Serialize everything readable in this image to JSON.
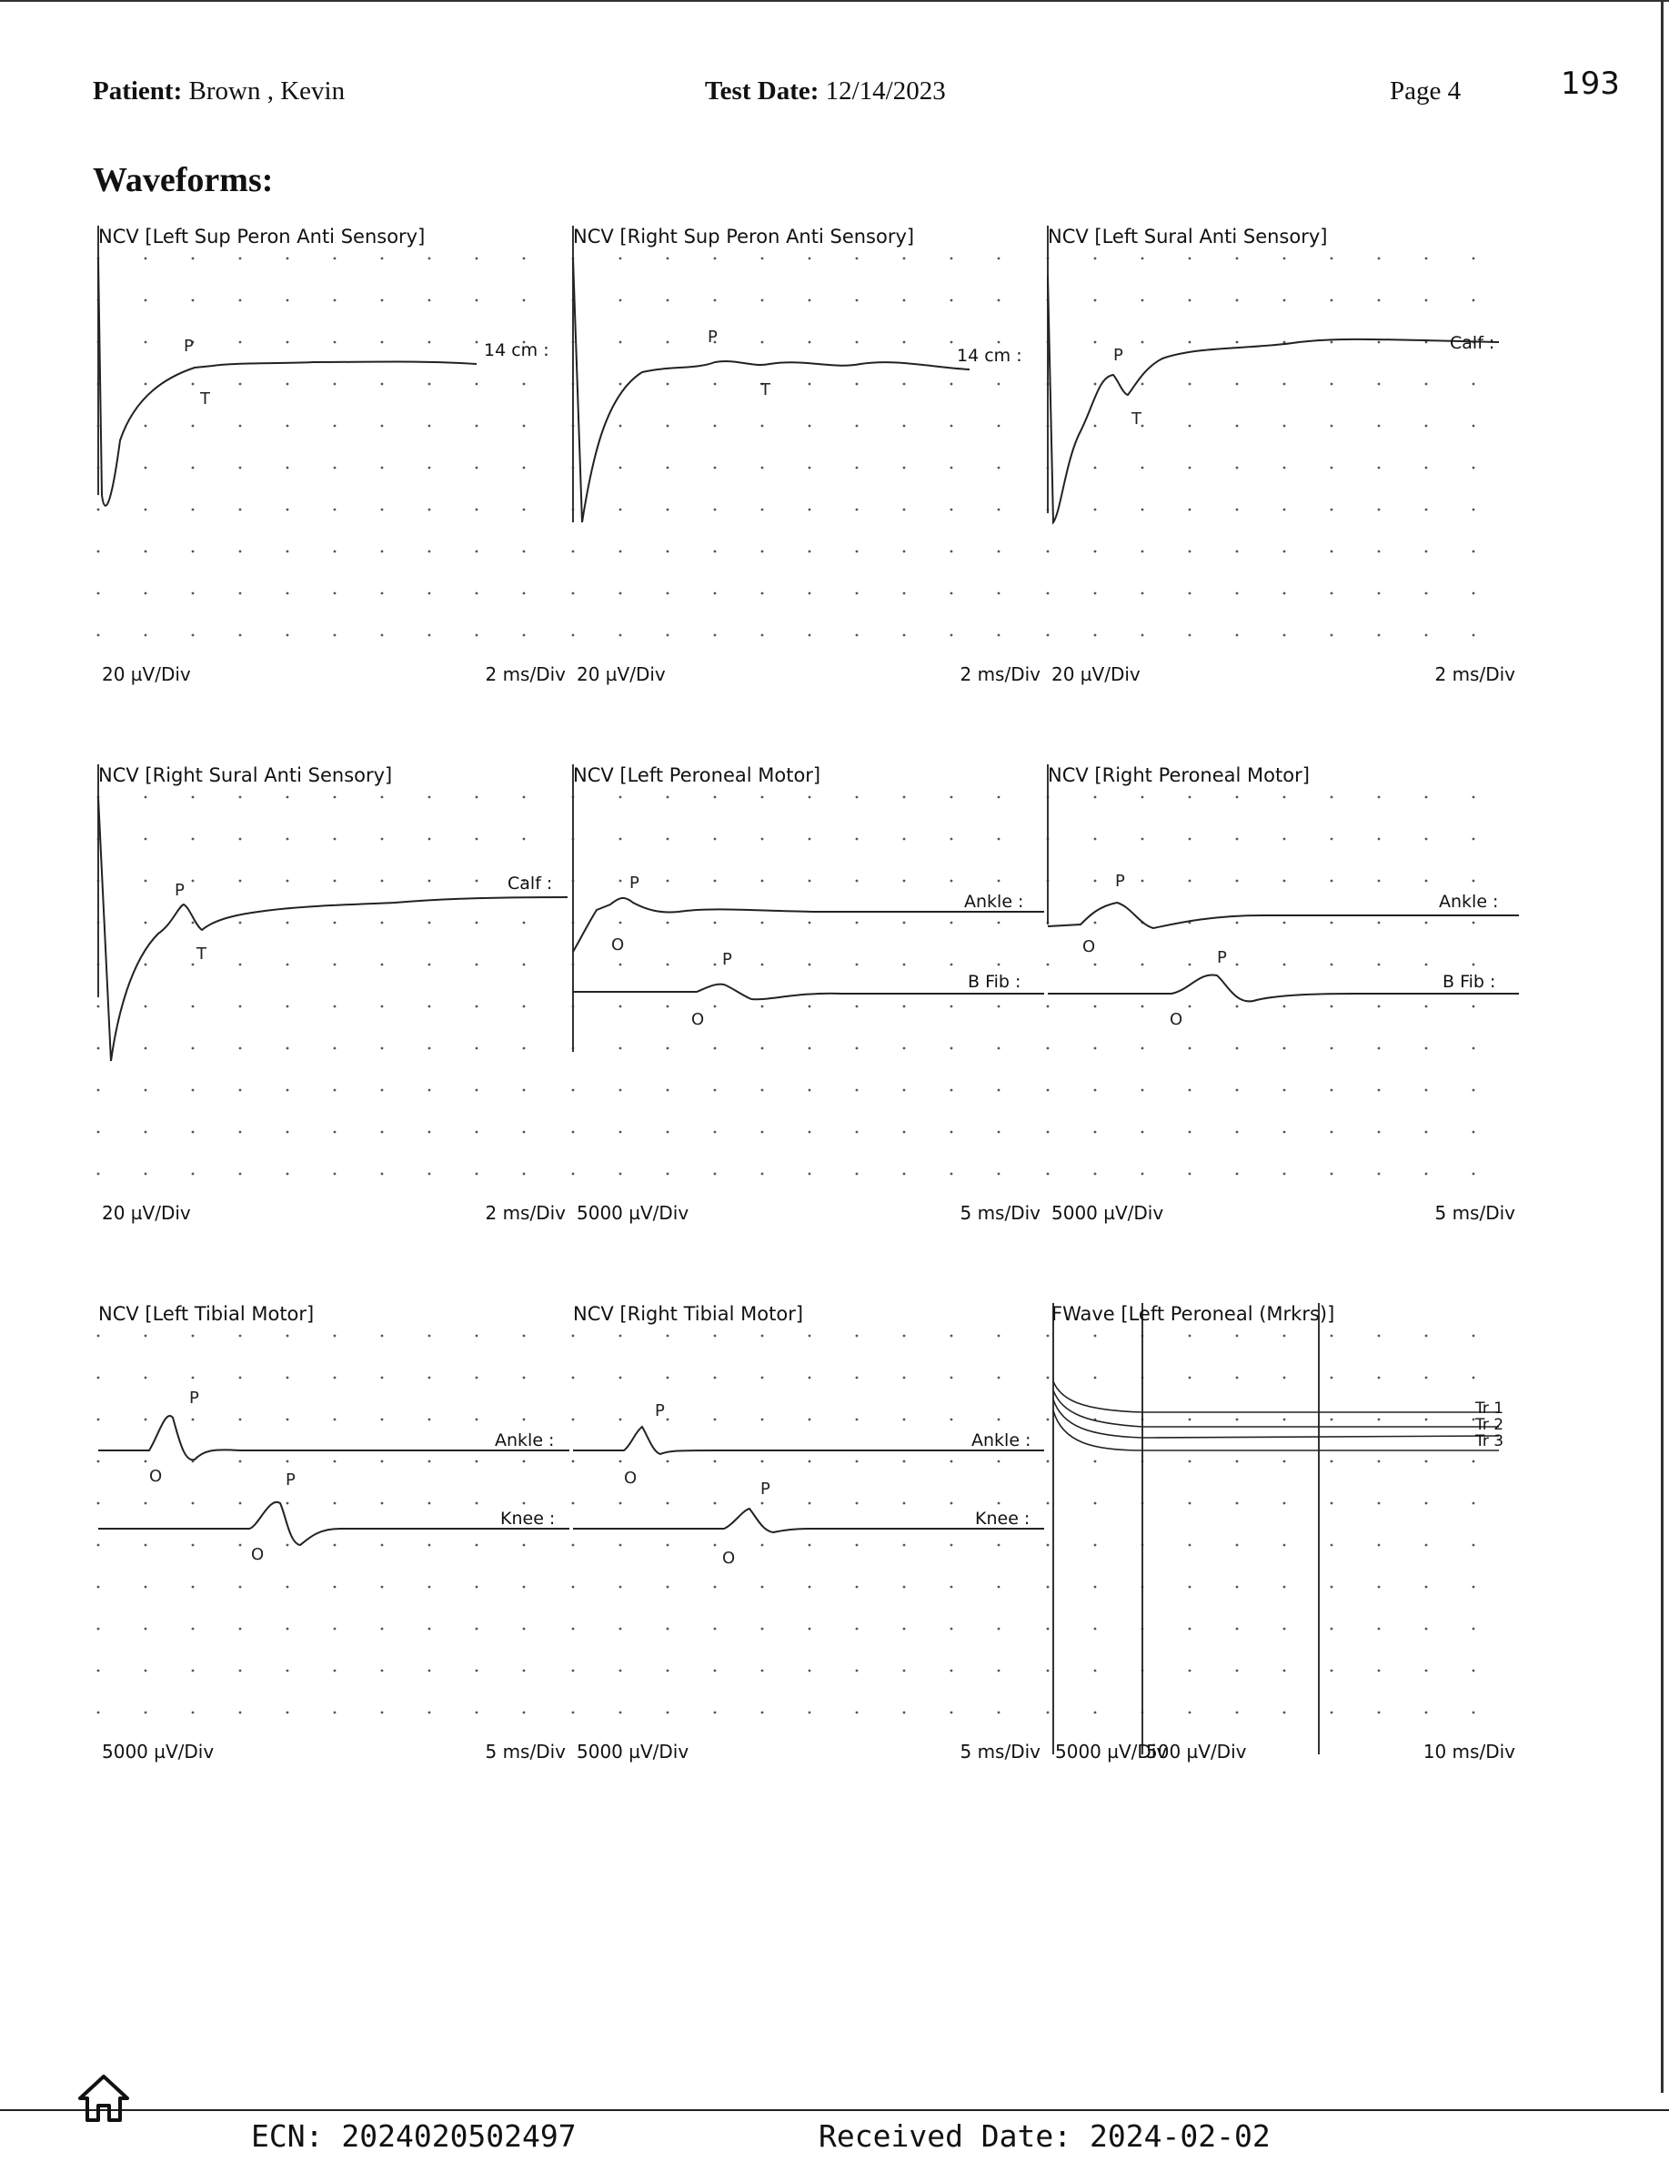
{
  "header": {
    "patient_label": "Patient:",
    "patient_name": "Brown , Kevin",
    "test_date_label": "Test Date:",
    "test_date": "12/14/2023",
    "page": "Page 4",
    "stamp_number": "193"
  },
  "section_title": "Waveforms:",
  "panels": [
    {
      "id": "p1",
      "title": "NCV [Left Sup Peron Anti Sensory]",
      "y_scale": "20 µV/Div",
      "x_scale": "2 ms/Div",
      "traces": [
        {
          "label": "14 cm :",
          "markers": [
            "P",
            "T"
          ]
        }
      ]
    },
    {
      "id": "p2",
      "title": "NCV [Right Sup Peron Anti Sensory]",
      "y_scale": "20 µV/Div",
      "x_scale": "2 ms/Div",
      "traces": [
        {
          "label": "14 cm :",
          "markers": [
            "P",
            "T"
          ]
        }
      ]
    },
    {
      "id": "p3",
      "title": "NCV [Left Sural Anti Sensory]",
      "y_scale": "20 µV/Div",
      "x_scale": "2 ms/Div",
      "traces": [
        {
          "label": "Calf :",
          "markers": [
            "P",
            "T"
          ]
        }
      ]
    },
    {
      "id": "p4",
      "title": "NCV [Right Sural Anti Sensory]",
      "y_scale": "20 µV/Div",
      "x_scale": "2 ms/Div",
      "traces": [
        {
          "label": "Calf :",
          "markers": [
            "P",
            "T"
          ]
        }
      ]
    },
    {
      "id": "p5",
      "title": "NCV [Left Peroneal Motor]",
      "y_scale": "5000 µV/Div",
      "x_scale": "5 ms/Div",
      "traces": [
        {
          "label": "Ankle :",
          "markers": [
            "P",
            "O"
          ]
        },
        {
          "label": "B Fib :",
          "markers": [
            "P",
            "O"
          ]
        }
      ]
    },
    {
      "id": "p6",
      "title": "NCV [Right Peroneal Motor]",
      "y_scale": "5000 µV/Div",
      "x_scale": "5 ms/Div",
      "traces": [
        {
          "label": "Ankle :",
          "markers": [
            "P",
            "O"
          ]
        },
        {
          "label": "B Fib :",
          "markers": [
            "P",
            "O"
          ]
        }
      ]
    },
    {
      "id": "p7",
      "title": "NCV [Left Tibial Motor]",
      "y_scale": "5000 µV/Div",
      "x_scale": "5 ms/Div",
      "traces": [
        {
          "label": "Ankle :",
          "markers": [
            "P",
            "O"
          ]
        },
        {
          "label": "Knee :",
          "markers": [
            "P",
            "O"
          ]
        }
      ]
    },
    {
      "id": "p8",
      "title": "NCV [Right Tibial Motor]",
      "y_scale": "5000 µV/Div",
      "x_scale": "5 ms/Div",
      "traces": [
        {
          "label": "Ankle :",
          "markers": [
            "P",
            "O"
          ]
        },
        {
          "label": "Knee :",
          "markers": [
            "P",
            "O"
          ]
        }
      ]
    },
    {
      "id": "p9",
      "title": "FWave [Left Peroneal (Mrkrs)]",
      "y_scale": "5000 µV/Div",
      "y_scale_2": "500 µV/Div",
      "x_scale": "10 ms/Div",
      "traces": [
        {
          "label": "Tr 1"
        },
        {
          "label": "Tr 2"
        },
        {
          "label": "Tr 3"
        }
      ]
    }
  ],
  "footer": {
    "ecn_label": "ECN:",
    "ecn": "2024020502497",
    "received_label": "Received Date:",
    "received_date": "2024-02-02"
  },
  "icons": {
    "home": "home-icon"
  }
}
